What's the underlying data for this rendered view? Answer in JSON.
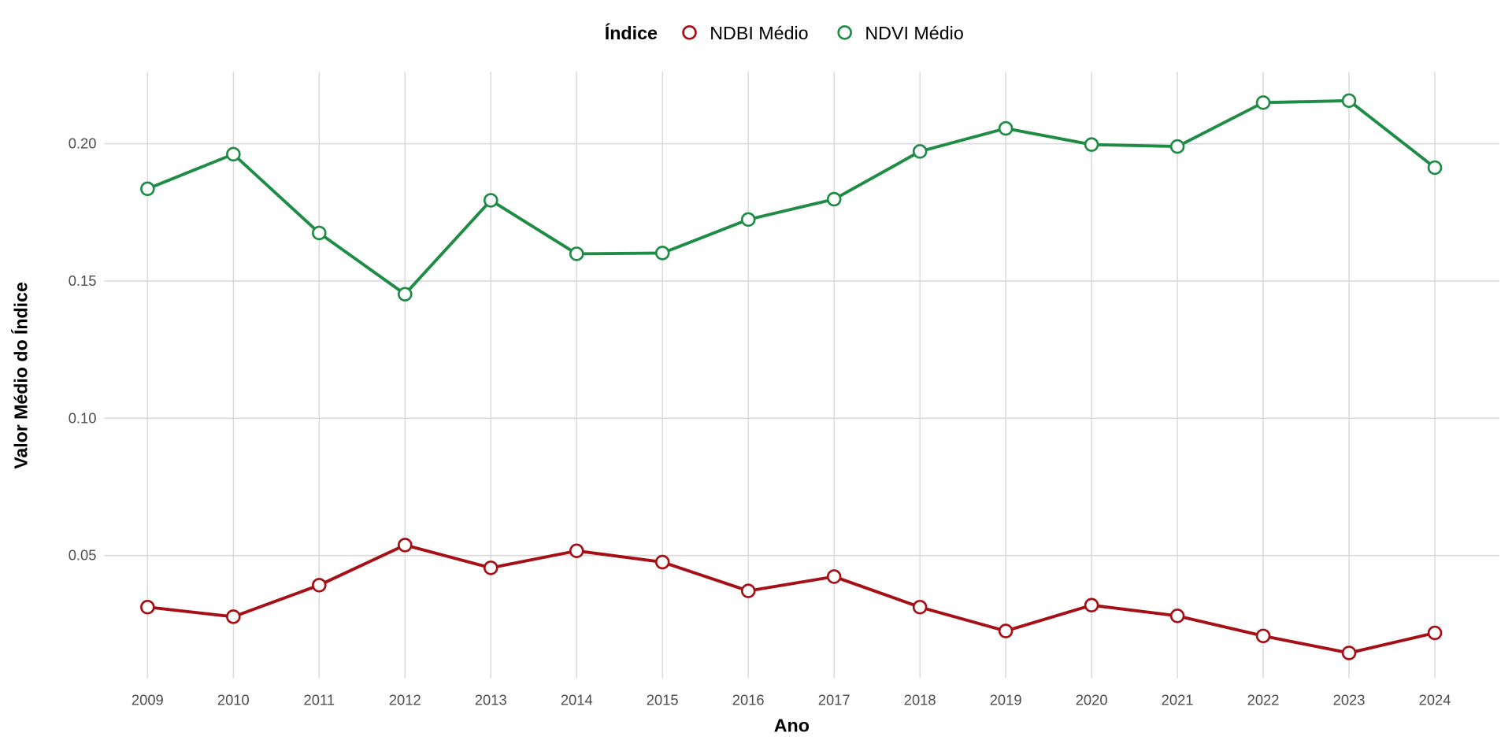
{
  "chart_data": {
    "type": "line",
    "title": "",
    "xlabel": "Ano",
    "ylabel": "Valor Médio do Índice",
    "legend_title": "Índice",
    "legend_position": "top",
    "grid": true,
    "x": [
      2009,
      2010,
      2011,
      2012,
      2013,
      2014,
      2015,
      2016,
      2017,
      2018,
      2019,
      2020,
      2021,
      2022,
      2023,
      2024
    ],
    "x_tick_labels": [
      "2009",
      "2010",
      "2011",
      "2012",
      "2013",
      "2014",
      "2015",
      "2016",
      "2017",
      "2018",
      "2019",
      "2020",
      "2021",
      "2022",
      "2023",
      "2024"
    ],
    "ylim": [
      0.0053,
      0.2262
    ],
    "y_ticks": [
      0.05,
      0.1,
      0.15,
      0.2
    ],
    "y_tick_labels": [
      "0.05",
      "0.10",
      "0.15",
      "0.20"
    ],
    "series": [
      {
        "name": "NDBI Médio",
        "color": "#a50f15",
        "values": [
          0.0312,
          0.0277,
          0.0392,
          0.0538,
          0.0455,
          0.0517,
          0.0476,
          0.0371,
          0.0423,
          0.0312,
          0.0225,
          0.0319,
          0.028,
          0.0207,
          0.0145,
          0.0218
        ]
      },
      {
        "name": "NDVI Médio",
        "color": "#1e8c45",
        "values": [
          0.1836,
          0.1962,
          0.1675,
          0.1452,
          0.1794,
          0.1599,
          0.1602,
          0.1724,
          0.1798,
          0.1972,
          0.2056,
          0.1997,
          0.199,
          0.215,
          0.2157,
          0.1913
        ]
      }
    ]
  }
}
